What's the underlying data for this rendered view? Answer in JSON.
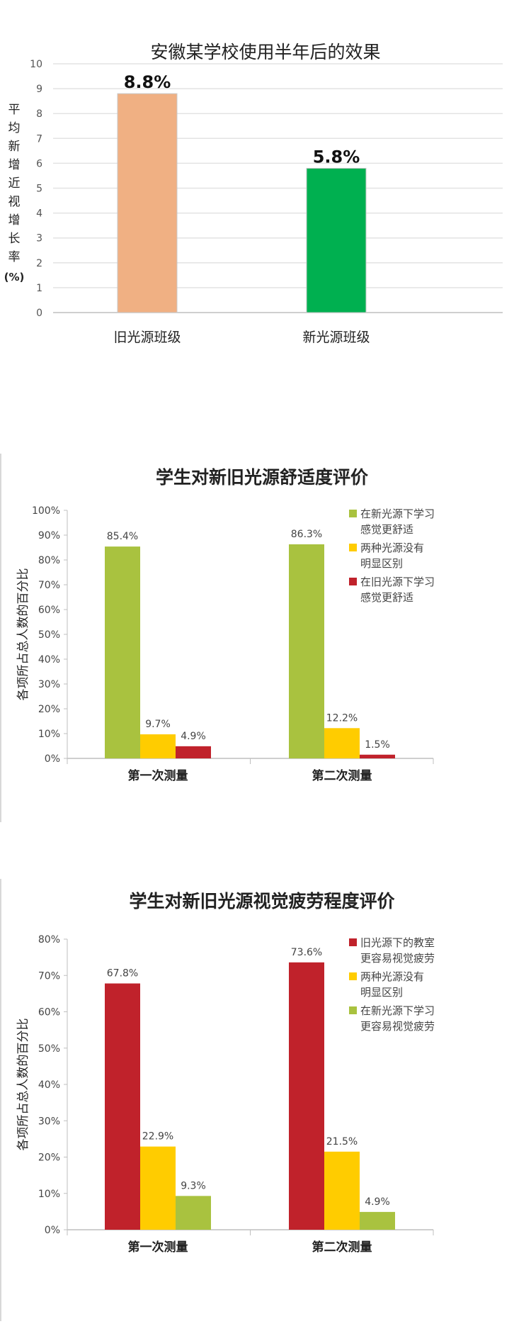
{
  "chart_data": [
    {
      "type": "bar",
      "title": "安徽某学校使用半年后的效果",
      "ylabel": "平均新增近视增长率(%)",
      "categories": [
        "旧光源班级",
        "新光源班级"
      ],
      "values": [
        8.8,
        5.8
      ],
      "value_labels": [
        "8.8%",
        "5.8%"
      ],
      "colors": [
        "#f0b083",
        "#00b050"
      ],
      "ylim": [
        0,
        10
      ],
      "yticks": [
        "0",
        "1",
        "2",
        "3",
        "4",
        "5",
        "6",
        "7",
        "8",
        "9",
        "10"
      ],
      "grid": true
    },
    {
      "type": "bar",
      "title": "学生对新旧光源舒适度评价",
      "ylabel": "各项所占总人数的百分比",
      "categories": [
        "第一次测量",
        "第二次测量"
      ],
      "ylim": [
        0,
        100
      ],
      "yticks": [
        "0%",
        "10%",
        "20%",
        "30%",
        "40%",
        "50%",
        "60%",
        "70%",
        "80%",
        "90%",
        "100%"
      ],
      "legend": "top-right",
      "series": [
        {
          "name": "在新光源下学习感觉更舒适",
          "legend_lines": [
            "在新光源下学习",
            "感觉更舒适"
          ],
          "color": "#a9c23f",
          "values": [
            85.4,
            86.3
          ],
          "labels": [
            "85.4%",
            "86.3%"
          ]
        },
        {
          "name": "两种光源没有明显区别",
          "legend_lines": [
            "两种光源没有",
            "明显区别"
          ],
          "color": "#ffcc00",
          "values": [
            9.7,
            12.2
          ],
          "labels": [
            "9.7%",
            "12.2%"
          ]
        },
        {
          "name": "在旧光源下学习感觉更舒适",
          "legend_lines": [
            "在旧光源下学习",
            "感觉更舒适"
          ],
          "color": "#c0222b",
          "values": [
            4.9,
            1.5
          ],
          "labels": [
            "4.9%",
            "1.5%"
          ]
        }
      ]
    },
    {
      "type": "bar",
      "title": "学生对新旧光源视觉疲劳程度评价",
      "ylabel": "各项所占总人数的百分比",
      "categories": [
        "第一次测量",
        "第二次测量"
      ],
      "ylim": [
        0,
        80
      ],
      "yticks": [
        "0%",
        "10%",
        "20%",
        "30%",
        "40%",
        "50%",
        "60%",
        "70%",
        "80%"
      ],
      "legend": "top-right",
      "series": [
        {
          "name": "旧光源下的教室更容易视觉疲劳",
          "legend_lines": [
            "旧光源下的教室",
            "更容易视觉疲劳"
          ],
          "color": "#c0222b",
          "values": [
            67.8,
            73.6
          ],
          "labels": [
            "67.8%",
            "73.6%"
          ]
        },
        {
          "name": "两种光源没有明显区别",
          "legend_lines": [
            "两种光源没有",
            "明显区别"
          ],
          "color": "#ffcc00",
          "values": [
            22.9,
            21.5
          ],
          "labels": [
            "22.9%",
            "21.5%"
          ]
        },
        {
          "name": "在新光源下学习更容易视觉疲劳",
          "legend_lines": [
            "在新光源下学习",
            "更容易视觉疲劳"
          ],
          "color": "#a9c23f",
          "values": [
            9.3,
            4.9
          ],
          "labels": [
            "9.3%",
            "4.9%"
          ]
        }
      ]
    }
  ]
}
